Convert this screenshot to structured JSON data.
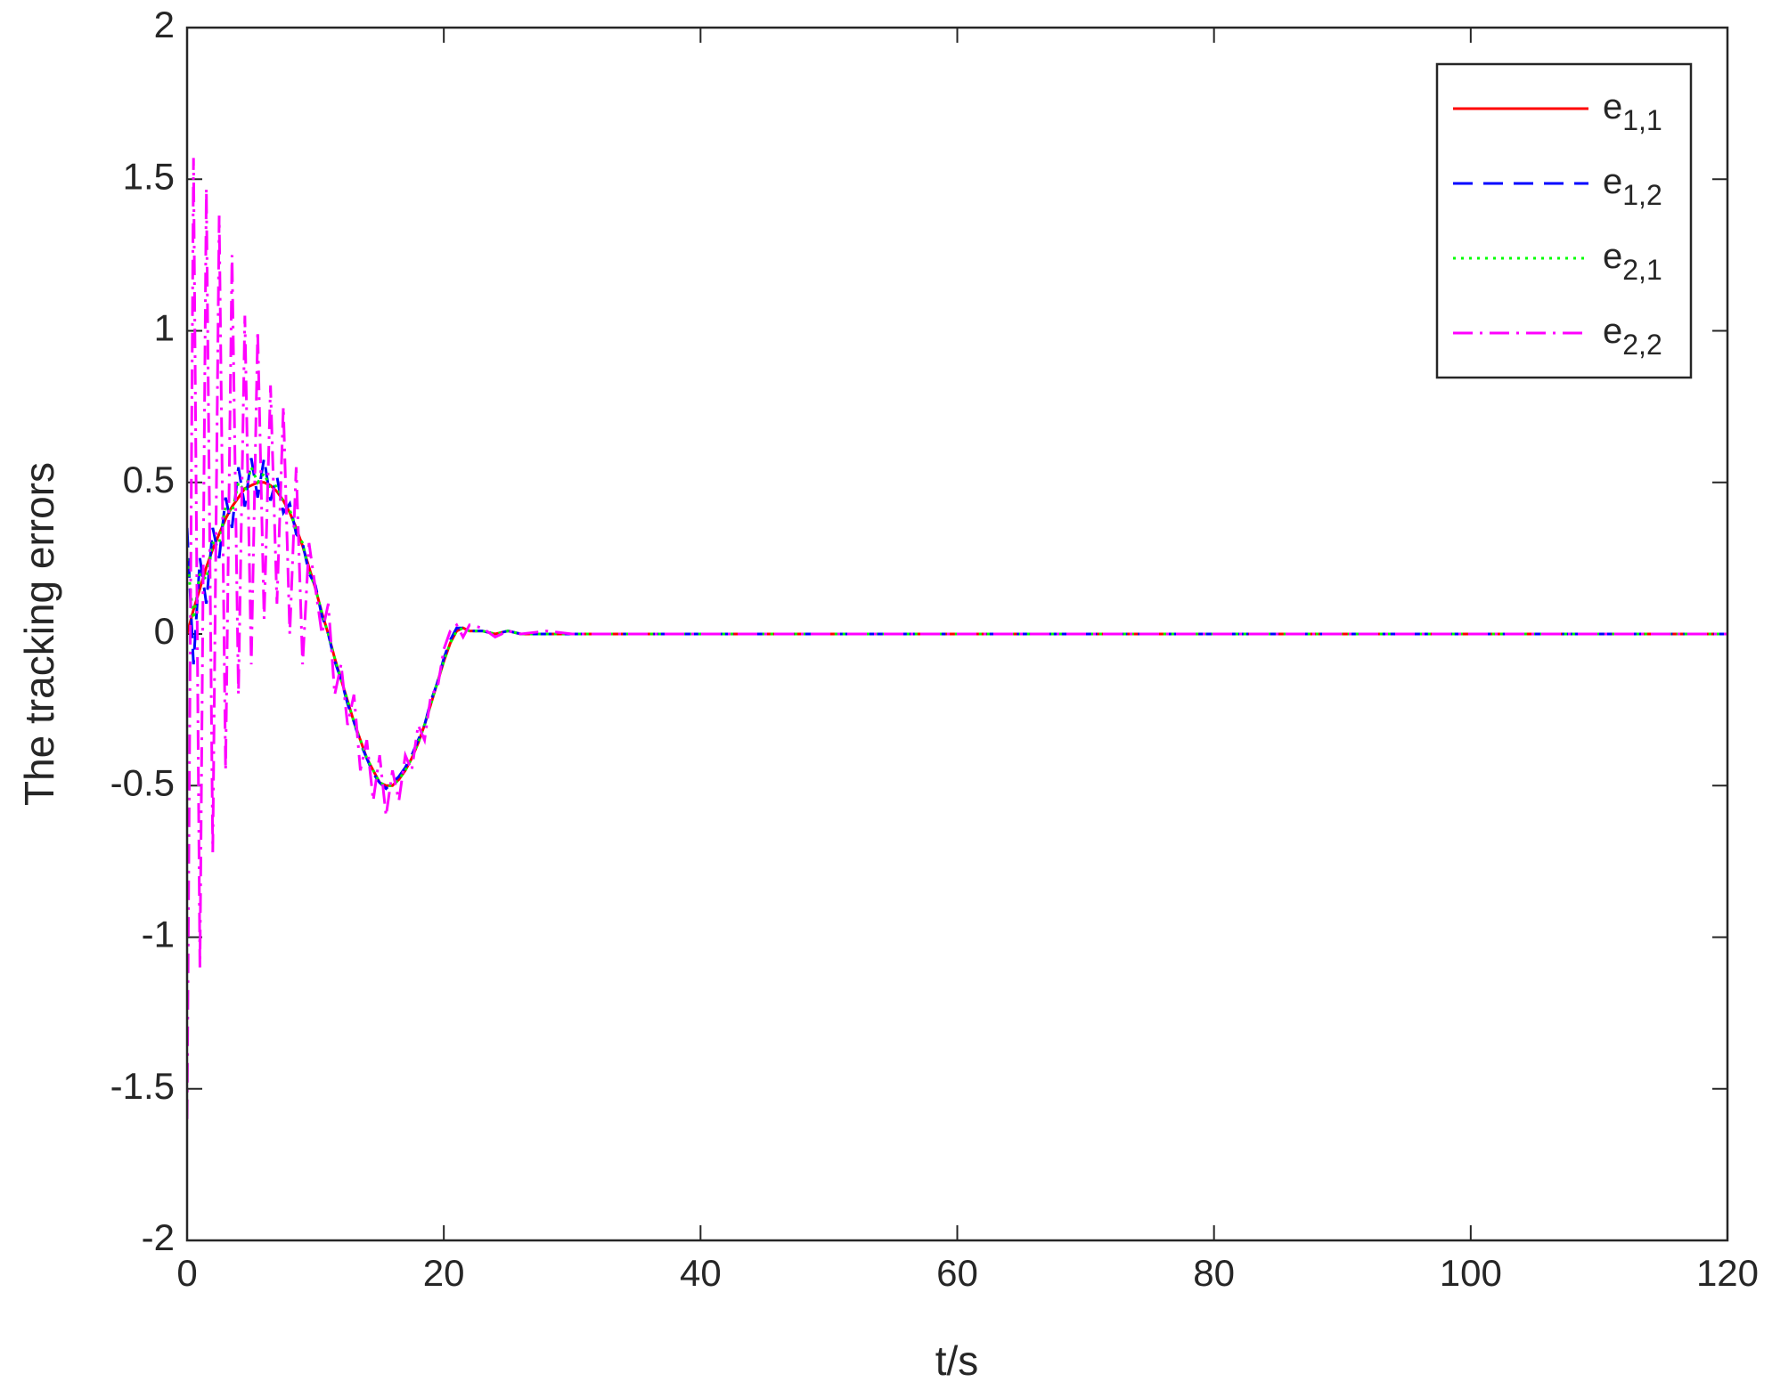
{
  "chart_data": {
    "type": "line",
    "xlabel": "t/s",
    "ylabel": "The tracking errors",
    "x": [
      0,
      0.5,
      1,
      1.5,
      2,
      2.5,
      3,
      3.5,
      4,
      4.5,
      5,
      5.5,
      6,
      6.5,
      7,
      7.5,
      8,
      8.5,
      9,
      9.5,
      10,
      10.5,
      11,
      11.5,
      12,
      12.5,
      13,
      13.5,
      14,
      14.5,
      15,
      15.5,
      16,
      16.5,
      17,
      17.5,
      18,
      18.5,
      19,
      19.5,
      20,
      20.5,
      21,
      21.5,
      22,
      23,
      24,
      25,
      26,
      28,
      30,
      40,
      50,
      60,
      70,
      80,
      90,
      100,
      110,
      120
    ],
    "series": [
      {
        "name": "e",
        "subscript": "1,1",
        "color": "#ff0000",
        "dash": "solid",
        "values": [
          0,
          0.08,
          0.15,
          0.22,
          0.28,
          0.33,
          0.38,
          0.42,
          0.45,
          0.48,
          0.49,
          0.5,
          0.5,
          0.49,
          0.47,
          0.44,
          0.4,
          0.35,
          0.29,
          0.22,
          0.15,
          0.07,
          0,
          -0.08,
          -0.15,
          -0.22,
          -0.29,
          -0.35,
          -0.41,
          -0.45,
          -0.49,
          -0.5,
          -0.5,
          -0.48,
          -0.45,
          -0.41,
          -0.36,
          -0.3,
          -0.23,
          -0.16,
          -0.09,
          -0.03,
          0.01,
          0.02,
          0.01,
          0.01,
          0,
          0.01,
          0,
          0,
          0,
          0,
          0,
          0,
          0,
          0,
          0,
          0,
          0,
          0
        ]
      },
      {
        "name": "e",
        "subscript": "1,2",
        "color": "#0000ff",
        "dash": "dashed",
        "values": [
          0.35,
          -0.1,
          0.25,
          0.1,
          0.35,
          0.25,
          0.45,
          0.35,
          0.55,
          0.42,
          0.58,
          0.45,
          0.58,
          0.44,
          0.52,
          0.4,
          0.43,
          0.33,
          0.3,
          0.2,
          0.16,
          0.06,
          0,
          -0.09,
          -0.15,
          -0.23,
          -0.29,
          -0.36,
          -0.41,
          -0.46,
          -0.49,
          -0.51,
          -0.49,
          -0.47,
          -0.44,
          -0.4,
          -0.35,
          -0.3,
          -0.22,
          -0.16,
          -0.08,
          -0.02,
          0.02,
          0.02,
          0.01,
          0.01,
          0,
          0.01,
          0,
          0,
          0,
          0,
          0,
          0,
          0,
          0,
          0,
          0,
          0,
          0
        ]
      },
      {
        "name": "e",
        "subscript": "2,1",
        "color": "#00ff00",
        "dash": "dotted",
        "values": [
          0.25,
          0.05,
          0.2,
          0.18,
          0.3,
          0.3,
          0.42,
          0.4,
          0.5,
          0.47,
          0.55,
          0.5,
          0.53,
          0.48,
          0.49,
          0.43,
          0.41,
          0.34,
          0.3,
          0.21,
          0.15,
          0.07,
          0,
          -0.08,
          -0.15,
          -0.22,
          -0.29,
          -0.35,
          -0.41,
          -0.45,
          -0.49,
          -0.5,
          -0.5,
          -0.48,
          -0.45,
          -0.41,
          -0.36,
          -0.3,
          -0.23,
          -0.16,
          -0.09,
          -0.03,
          0.01,
          0.02,
          0.01,
          0.01,
          0,
          0.01,
          0,
          0,
          0,
          0,
          0,
          0,
          0,
          0,
          0,
          0,
          0,
          0
        ]
      },
      {
        "name": "e",
        "subscript": "2,2",
        "color": "#ff00ff",
        "dash": "dashdot",
        "values": [
          -1.6,
          1.57,
          -1.1,
          1.47,
          -0.72,
          1.38,
          -0.45,
          1.25,
          -0.2,
          1.05,
          -0.1,
          1.0,
          0.05,
          0.82,
          0.1,
          0.75,
          0,
          0.55,
          -0.1,
          0.3,
          0.15,
          0,
          0.1,
          -0.2,
          -0.1,
          -0.3,
          -0.2,
          -0.45,
          -0.35,
          -0.55,
          -0.4,
          -0.6,
          -0.45,
          -0.55,
          -0.4,
          -0.45,
          -0.3,
          -0.35,
          -0.2,
          -0.18,
          -0.05,
          0.01,
          0.03,
          -0.01,
          0.03,
          0.02,
          -0.01,
          0.01,
          0,
          0.01,
          0,
          0,
          0,
          0,
          0,
          0,
          0,
          0,
          0,
          0
        ]
      }
    ],
    "xlim": [
      0,
      120
    ],
    "xticks": [
      0,
      20,
      40,
      60,
      80,
      100,
      120
    ],
    "ylim": [
      -2,
      2
    ],
    "yticks": [
      -2,
      -1.5,
      -1,
      -0.5,
      0,
      0.5,
      1,
      1.5,
      2
    ],
    "grid": false,
    "legend": "upper right"
  }
}
